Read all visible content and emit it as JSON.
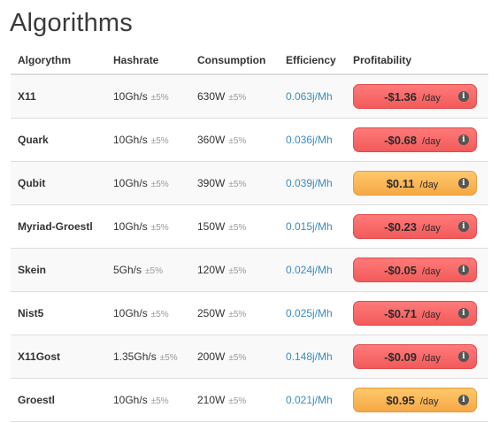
{
  "page": {
    "title": "Algorithms"
  },
  "table": {
    "headers": {
      "algorithm": "Algorythm",
      "hashrate": "Hashrate",
      "consumption": "Consumption",
      "efficiency": "Efficiency",
      "profitability": "Profitability"
    },
    "tolerance": "±5%",
    "per_day": "/day",
    "rows": [
      {
        "name": "X11",
        "hashrate": "10Gh/s",
        "consumption": "630W",
        "efficiency": "0.063j/Mh",
        "profit": "-$1.36",
        "status": "negative"
      },
      {
        "name": "Quark",
        "hashrate": "10Gh/s",
        "consumption": "360W",
        "efficiency": "0.036j/Mh",
        "profit": "-$0.68",
        "status": "negative"
      },
      {
        "name": "Qubit",
        "hashrate": "10Gh/s",
        "consumption": "390W",
        "efficiency": "0.039j/Mh",
        "profit": "$0.11",
        "status": "positive"
      },
      {
        "name": "Myriad-Groestl",
        "hashrate": "10Gh/s",
        "consumption": "150W",
        "efficiency": "0.015j/Mh",
        "profit": "-$0.23",
        "status": "negative"
      },
      {
        "name": "Skein",
        "hashrate": "5Gh/s",
        "consumption": "120W",
        "efficiency": "0.024j/Mh",
        "profit": "-$0.05",
        "status": "negative"
      },
      {
        "name": "Nist5",
        "hashrate": "10Gh/s",
        "consumption": "250W",
        "efficiency": "0.025j/Mh",
        "profit": "-$0.71",
        "status": "negative"
      },
      {
        "name": "X11Gost",
        "hashrate": "1.35Gh/s",
        "consumption": "200W",
        "efficiency": "0.148j/Mh",
        "profit": "-$0.09",
        "status": "negative"
      },
      {
        "name": "Groestl",
        "hashrate": "10Gh/s",
        "consumption": "210W",
        "efficiency": "0.021j/Mh",
        "profit": "$0.95",
        "status": "positive"
      }
    ]
  },
  "icons": {
    "info": "info-icon"
  },
  "colors": {
    "negative": "#f25a5a",
    "positive": "#f5a846",
    "efficiency_link": "#3a8cc2"
  }
}
